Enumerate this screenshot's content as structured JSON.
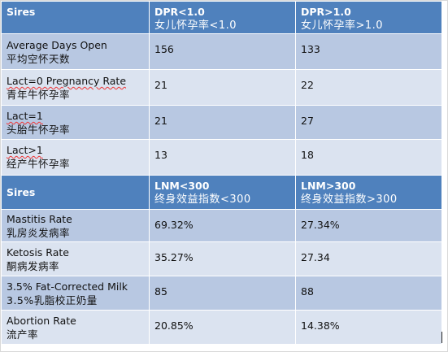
{
  "table1": {
    "header": {
      "col1": "Sires",
      "col2_en": "DPR<1.0",
      "col2_cn": "女儿怀孕率<1.0",
      "col3_en": "DPR>1.0",
      "col3_cn": "女儿怀孕率>1.0"
    },
    "rows": [
      {
        "en": "Average Days Open",
        "cn": "平均空怀天数",
        "v1": "156",
        "v2": "133"
      },
      {
        "en": "Lact=0  Pregnancy Rate",
        "cn": "青年牛怀孕率",
        "v1": "21",
        "v2": "22"
      },
      {
        "en": "Lact=1",
        "cn": "头胎牛怀孕率",
        "v1": "21",
        "v2": "27"
      },
      {
        "en": "Lact>1",
        "cn": "经产牛怀孕率",
        "v1": "13",
        "v2": "18"
      }
    ]
  },
  "table2": {
    "header": {
      "col1": "Sires",
      "col2_en": "LNM<300",
      "col2_cn": "终身效益指数<300",
      "col3_en": "LNM>300",
      "col3_cn": "终身效益指数>300"
    },
    "rows": [
      {
        "en": "Mastitis Rate",
        "cn": "乳房炎发病率",
        "v1": "69.32%",
        "v2": "27.34%"
      },
      {
        "en": "Ketosis Rate",
        "cn": "酮病发病率",
        "v1": "35.27%",
        "v2": "27.34"
      },
      {
        "en": "3.5% Fat-Corrected Milk",
        "cn": "3.5%乳脂校正奶量",
        "v1": "85",
        "v2": "88"
      },
      {
        "en": "Abortion Rate",
        "cn": "流产率",
        "v1": "20.85%",
        "v2": "14.38%"
      }
    ]
  }
}
